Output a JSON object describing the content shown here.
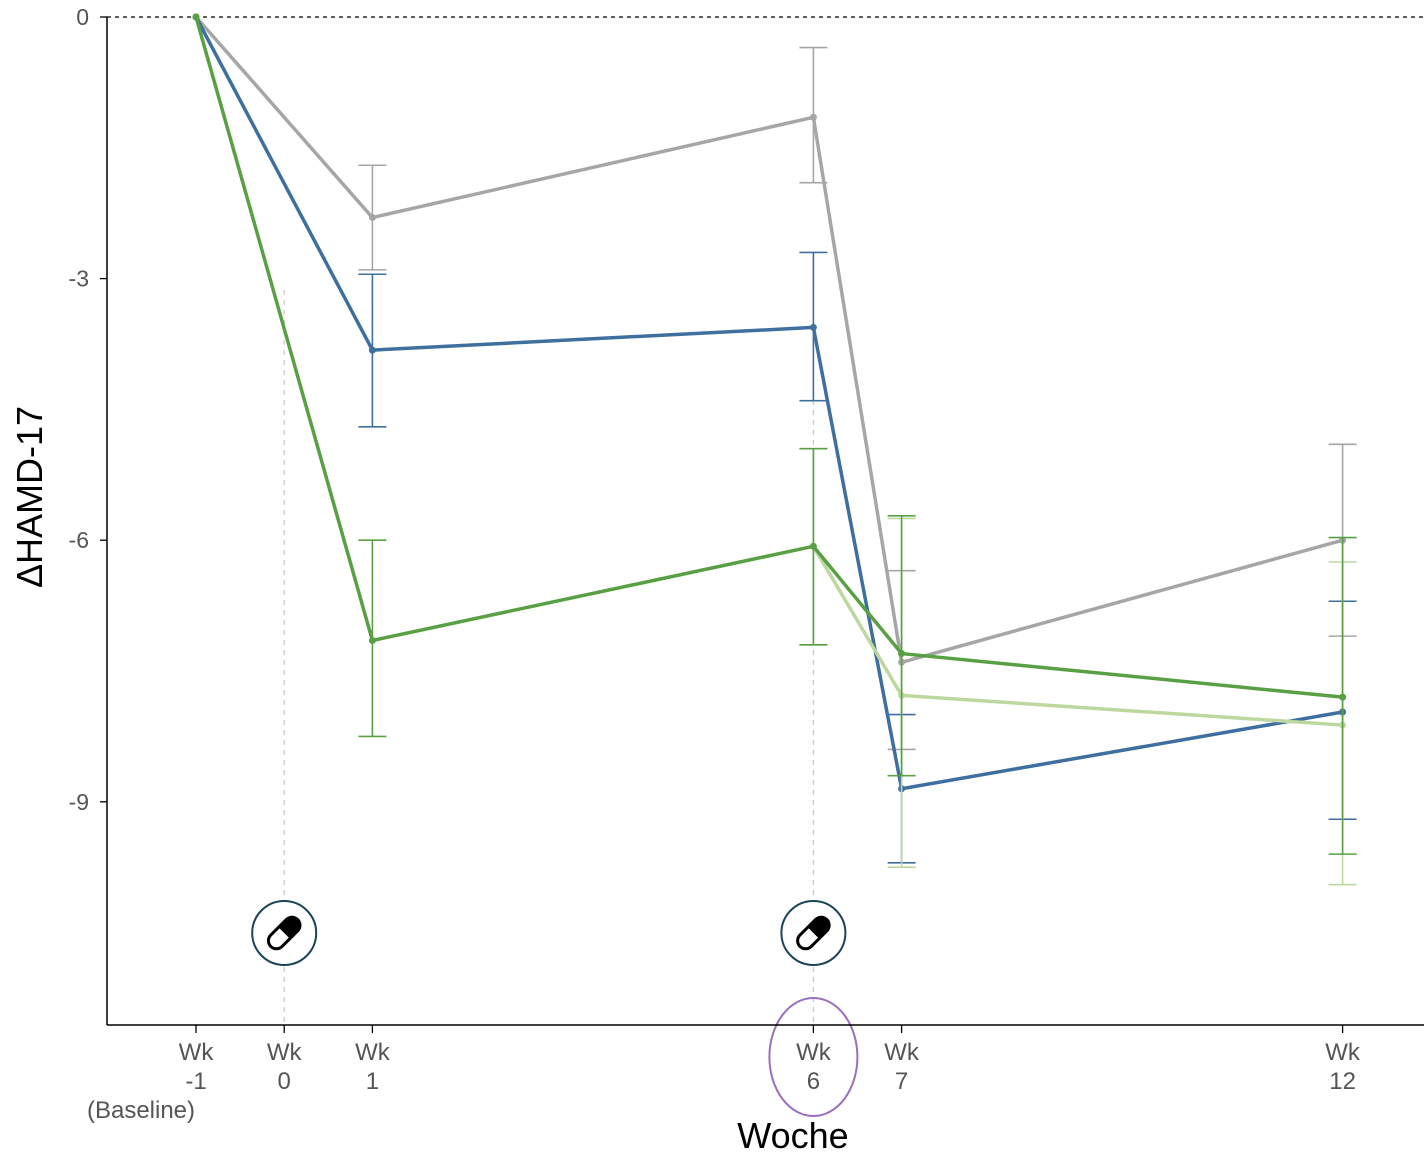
{
  "chart_data": {
    "type": "line",
    "xlabel": "Woche",
    "ylabel": "ΔHAMD-17",
    "x": [
      -1,
      0,
      1,
      6,
      7,
      12
    ],
    "x_tick_labels": [
      {
        "value": -1,
        "lines": [
          "Wk",
          "-1",
          "(Baseline)"
        ]
      },
      {
        "value": 0,
        "lines": [
          "Wk",
          "0"
        ]
      },
      {
        "value": 1,
        "lines": [
          "Wk",
          "1"
        ]
      },
      {
        "value": 6,
        "lines": [
          "Wk",
          "6"
        ],
        "highlighted": true
      },
      {
        "value": 7,
        "lines": [
          "Wk",
          "7"
        ]
      },
      {
        "value": 12,
        "lines": [
          "Wk",
          "12"
        ]
      }
    ],
    "y_ticks": [
      0,
      -3,
      -6,
      -9
    ],
    "y_tick_labels": [
      "0",
      "-3",
      "-6",
      "-9"
    ],
    "xlim": [
      -2,
      13.7
    ],
    "ylim": [
      -11.55,
      0
    ],
    "reference_line_y": 0,
    "dose_markers_x": [
      0,
      6
    ],
    "dose_marker_icon": "capsule-icon",
    "highlight_color": "#9b6fbf",
    "grid": false,
    "series": [
      {
        "color": "#a6a6a6",
        "points": [
          {
            "x": -1,
            "y": 0
          },
          {
            "x": 1,
            "y": -2.3,
            "lo": -2.9,
            "hi": -1.7
          },
          {
            "x": 6,
            "y": -1.15,
            "lo": -1.9,
            "hi": -0.35
          },
          {
            "x": 7,
            "y": -7.4,
            "lo": -8.4,
            "hi": -6.35
          },
          {
            "x": 12,
            "y": -6.0,
            "lo": -7.1,
            "hi": -4.9
          }
        ]
      },
      {
        "color": "#3f6f9f",
        "points": [
          {
            "x": -1,
            "y": 0
          },
          {
            "x": 1,
            "y": -3.82,
            "lo": -4.7,
            "hi": -2.95
          },
          {
            "x": 6,
            "y": -3.56,
            "lo": -4.4,
            "hi": -2.7
          },
          {
            "x": 7,
            "y": -8.85,
            "lo": -9.7,
            "hi": -8.0
          },
          {
            "x": 12,
            "y": -7.97,
            "lo": -9.2,
            "hi": -6.7
          }
        ]
      },
      {
        "color": "#bcd89f",
        "points": [
          {
            "x": 6,
            "y": -6.07,
            "lo": -7.2,
            "hi": -4.95
          },
          {
            "x": 7,
            "y": -7.78,
            "lo": -9.75,
            "hi": -5.75
          },
          {
            "x": 12,
            "y": -8.12,
            "lo": -9.95,
            "hi": -6.25
          }
        ]
      },
      {
        "color": "#58a043",
        "points": [
          {
            "x": -1,
            "y": 0
          },
          {
            "x": 1,
            "y": -7.15,
            "lo": -8.25,
            "hi": -6.0
          },
          {
            "x": 6,
            "y": -6.07,
            "lo": -7.2,
            "hi": -4.95
          },
          {
            "x": 7,
            "y": -7.3,
            "lo": -8.7,
            "hi": -5.72
          },
          {
            "x": 12,
            "y": -7.8,
            "lo": -9.6,
            "hi": -5.97
          }
        ]
      }
    ]
  }
}
